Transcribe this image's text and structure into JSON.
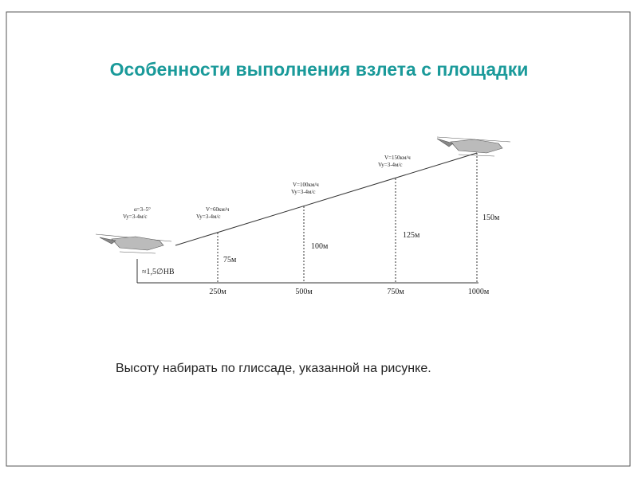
{
  "header": {
    "title": "Особенности выполнения взлета с площадки"
  },
  "diagram": {
    "start": {
      "angle": "α=3–5°",
      "vy": "Vy=3-4м/с",
      "hover": "≈1,5∅НВ"
    },
    "points": [
      {
        "speed": "V=60км/ч",
        "vy": "Vy=3-4м/с",
        "height": "75м",
        "distance": "250м"
      },
      {
        "speed": "V=100км/ч",
        "vy": "Vy=3-4м/с",
        "height": "100м",
        "distance": "500м"
      },
      {
        "speed": "V=150км/ч",
        "vy": "Vy=3-4м/с",
        "height": "125м",
        "distance": "750м"
      },
      {
        "height": "150м",
        "distance": "1000м"
      }
    ]
  },
  "caption": "Высоту набирать по глиссаде, указанной на рисунке."
}
